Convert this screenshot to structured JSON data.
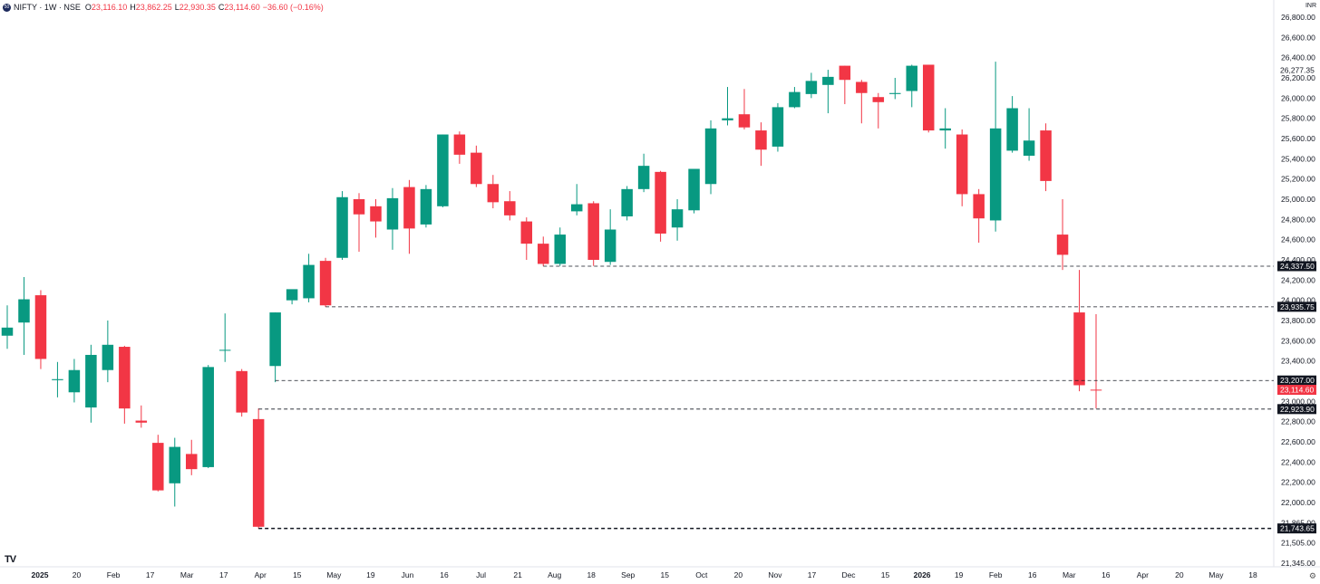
{
  "header": {
    "logo_text": "50",
    "symbol": "NIFTY · 1W · NSE",
    "open_key": "O",
    "open": "23,116.10",
    "high_key": "H",
    "high": "23,862.25",
    "low_key": "L",
    "low": "22,930.35",
    "close_key": "C",
    "close": "23,114.60",
    "change": "−36.60 (−0.16%)"
  },
  "currency": "INR",
  "tv_logo": "TV",
  "gear_icon": "gear-icon",
  "colors": {
    "up": "#089981",
    "down": "#f23645",
    "label_bg": "#131722",
    "last_bg": "#f23645"
  },
  "chart_data": {
    "type": "candlestick",
    "y_ticks": [
      "26,800.00",
      "26,600.00",
      "26,400.00",
      "26,200.00",
      "26,000.00",
      "25,800.00",
      "25,600.00",
      "25,400.00",
      "25,200.00",
      "25,000.00",
      "24,800.00",
      "24,600.00",
      "24,400.00",
      "24,200.00",
      "24,000.00",
      "23,800.00",
      "23,600.00",
      "23,400.00",
      "23,200.00",
      "23,000.00",
      "22,800.00",
      "22,600.00",
      "22,400.00",
      "22,200.00",
      "22,000.00",
      "21,865.00",
      "21,505.00",
      "21,345.00"
    ],
    "x_ticks": [
      "2025",
      "20",
      "Feb",
      "17",
      "Mar",
      "17",
      "Apr",
      "15",
      "May",
      "19",
      "Jun",
      "16",
      "Jul",
      "21",
      "Aug",
      "18",
      "Sep",
      "15",
      "Oct",
      "20",
      "Nov",
      "17",
      "Dec",
      "15",
      "2026",
      "19",
      "Feb",
      "16",
      "Mar",
      "16",
      "Apr",
      "20",
      "May",
      "18"
    ],
    "bold_x_ticks": [
      "2025",
      "2026"
    ],
    "candles": [
      {
        "o": 23650,
        "h": 23950,
        "l": 23520,
        "c": 23730
      },
      {
        "o": 23780,
        "h": 24230,
        "l": 23460,
        "c": 24010
      },
      {
        "o": 24050,
        "h": 24100,
        "l": 23320,
        "c": 23420
      },
      {
        "o": 23210,
        "h": 23390,
        "l": 23040,
        "c": 23220
      },
      {
        "o": 23090,
        "h": 23420,
        "l": 22990,
        "c": 23310
      },
      {
        "o": 22940,
        "h": 23560,
        "l": 22790,
        "c": 23460
      },
      {
        "o": 23310,
        "h": 23800,
        "l": 23190,
        "c": 23560
      },
      {
        "o": 23540,
        "h": 23550,
        "l": 22780,
        "c": 22930
      },
      {
        "o": 22810,
        "h": 22960,
        "l": 22740,
        "c": 22790
      },
      {
        "o": 22590,
        "h": 22670,
        "l": 22110,
        "c": 22120
      },
      {
        "o": 22190,
        "h": 22640,
        "l": 21960,
        "c": 22550
      },
      {
        "o": 22480,
        "h": 22620,
        "l": 22270,
        "c": 22330
      },
      {
        "o": 22350,
        "h": 23360,
        "l": 22340,
        "c": 23340
      },
      {
        "o": 23510,
        "h": 23870,
        "l": 23390,
        "c": 23510
      },
      {
        "o": 23300,
        "h": 23320,
        "l": 22850,
        "c": 22890
      },
      {
        "o": 22825,
        "h": 22930,
        "l": 21743,
        "c": 21760
      },
      {
        "o": 23350,
        "h": 23880,
        "l": 23190,
        "c": 23880
      },
      {
        "o": 24000,
        "h": 24100,
        "l": 23960,
        "c": 24110
      },
      {
        "o": 24020,
        "h": 24460,
        "l": 23980,
        "c": 24350
      },
      {
        "o": 24390,
        "h": 24420,
        "l": 23935,
        "c": 23950
      },
      {
        "o": 24420,
        "h": 25080,
        "l": 24400,
        "c": 25020
      },
      {
        "o": 25000,
        "h": 25060,
        "l": 24480,
        "c": 24850
      },
      {
        "o": 24930,
        "h": 25000,
        "l": 24620,
        "c": 24780
      },
      {
        "o": 24700,
        "h": 25110,
        "l": 24500,
        "c": 25010
      },
      {
        "o": 25120,
        "h": 25190,
        "l": 24460,
        "c": 24710
      },
      {
        "o": 24750,
        "h": 25140,
        "l": 24720,
        "c": 25100
      },
      {
        "o": 24930,
        "h": 25640,
        "l": 24920,
        "c": 25640
      },
      {
        "o": 25640,
        "h": 25670,
        "l": 25350,
        "c": 25440
      },
      {
        "o": 25460,
        "h": 25530,
        "l": 25120,
        "c": 25150
      },
      {
        "o": 25150,
        "h": 25240,
        "l": 24910,
        "c": 24970
      },
      {
        "o": 24980,
        "h": 25080,
        "l": 24790,
        "c": 24840
      },
      {
        "o": 24780,
        "h": 24820,
        "l": 24400,
        "c": 24560
      },
      {
        "o": 24560,
        "h": 24630,
        "l": 24337,
        "c": 24360
      },
      {
        "o": 24360,
        "h": 24720,
        "l": 24340,
        "c": 24650
      },
      {
        "o": 24880,
        "h": 25150,
        "l": 24840,
        "c": 24950
      },
      {
        "o": 24960,
        "h": 24980,
        "l": 24340,
        "c": 24400
      },
      {
        "o": 24380,
        "h": 24900,
        "l": 24350,
        "c": 24700
      },
      {
        "o": 24830,
        "h": 25130,
        "l": 24790,
        "c": 25100
      },
      {
        "o": 25100,
        "h": 25450,
        "l": 25070,
        "c": 25330
      },
      {
        "o": 25270,
        "h": 25280,
        "l": 24580,
        "c": 24660
      },
      {
        "o": 24720,
        "h": 25000,
        "l": 24590,
        "c": 24900
      },
      {
        "o": 24890,
        "h": 25290,
        "l": 24860,
        "c": 25300
      },
      {
        "o": 25150,
        "h": 25780,
        "l": 25050,
        "c": 25700
      },
      {
        "o": 25780,
        "h": 26110,
        "l": 25730,
        "c": 25800
      },
      {
        "o": 25840,
        "h": 26090,
        "l": 25690,
        "c": 25710
      },
      {
        "o": 25680,
        "h": 25760,
        "l": 25330,
        "c": 25490
      },
      {
        "o": 25520,
        "h": 25950,
        "l": 25470,
        "c": 25910
      },
      {
        "o": 25910,
        "h": 26110,
        "l": 25900,
        "c": 26060
      },
      {
        "o": 26040,
        "h": 26250,
        "l": 26000,
        "c": 26170
      },
      {
        "o": 26130,
        "h": 26280,
        "l": 25850,
        "c": 26210
      },
      {
        "o": 26320,
        "h": 26320,
        "l": 25940,
        "c": 26180
      },
      {
        "o": 26160,
        "h": 26180,
        "l": 25750,
        "c": 26050
      },
      {
        "o": 26010,
        "h": 26050,
        "l": 25700,
        "c": 25960
      },
      {
        "o": 26040,
        "h": 26200,
        "l": 25990,
        "c": 26050
      },
      {
        "o": 26070,
        "h": 26330,
        "l": 25910,
        "c": 26320
      },
      {
        "o": 26330,
        "h": 26330,
        "l": 25660,
        "c": 25680
      },
      {
        "o": 25680,
        "h": 25900,
        "l": 25500,
        "c": 25700
      },
      {
        "o": 25640,
        "h": 25690,
        "l": 24930,
        "c": 25050
      },
      {
        "o": 25050,
        "h": 25100,
        "l": 24570,
        "c": 24810
      },
      {
        "o": 24790,
        "h": 26360,
        "l": 24680,
        "c": 25700
      },
      {
        "o": 25480,
        "h": 26020,
        "l": 25460,
        "c": 25900
      },
      {
        "o": 25430,
        "h": 25900,
        "l": 25380,
        "c": 25580
      },
      {
        "o": 25680,
        "h": 25750,
        "l": 25080,
        "c": 25180
      },
      {
        "o": 24650,
        "h": 25000,
        "l": 24300,
        "c": 24450
      },
      {
        "o": 23880,
        "h": 24300,
        "l": 23100,
        "c": 23160
      },
      {
        "o": 23116.1,
        "h": 23862.25,
        "l": 22930.35,
        "c": 23114.6
      }
    ],
    "levels": [
      {
        "value": 24337.5,
        "label": "24,337.50"
      },
      {
        "value": 23935.75,
        "label": "23,935.75"
      },
      {
        "value": 23207.0,
        "label": "23,207.00"
      },
      {
        "value": 22923.9,
        "label": "22,923.90"
      },
      {
        "value": 21743.65,
        "label": "21,743.65"
      }
    ],
    "badges": [
      {
        "value": 26277.35,
        "label": "26,277.35"
      }
    ],
    "last_price": {
      "value": 23114.6,
      "label": "23,114.60"
    }
  }
}
